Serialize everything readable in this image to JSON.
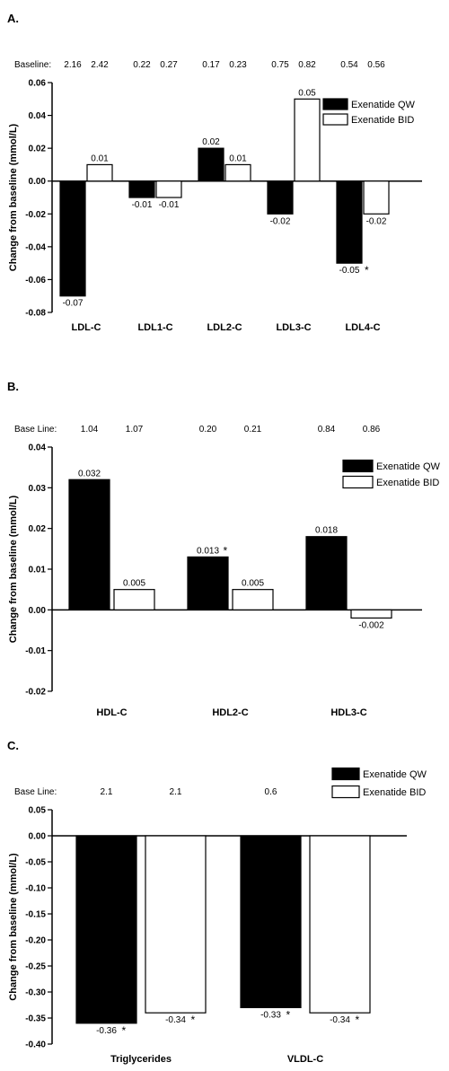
{
  "chart_data": [
    {
      "type": "bar",
      "panel": "A.",
      "baseline_label": "Baseline:",
      "categories": [
        "LDL-C",
        "LDL1-C",
        "LDL2-C",
        "LDL3-C",
        "LDL4-C"
      ],
      "series": [
        {
          "name": "Exenatide QW",
          "values": [
            -0.07,
            -0.01,
            0.02,
            -0.02,
            -0.05
          ],
          "labels": [
            "-0.07",
            "-0.01",
            "0.02",
            "-0.02",
            "-0.05"
          ],
          "significant": [
            false,
            false,
            false,
            false,
            true
          ],
          "baseline": [
            "2.16",
            "0.22",
            "0.17",
            "0.75",
            "0.54"
          ]
        },
        {
          "name": "Exenatide BID",
          "values": [
            0.01,
            -0.01,
            0.01,
            0.05,
            -0.02
          ],
          "labels": [
            "0.01",
            "-0.01",
            "0.01",
            "0.05",
            "-0.02"
          ],
          "significant": [
            false,
            false,
            false,
            false,
            false
          ],
          "baseline": [
            "2.42",
            "0.27",
            "0.23",
            "0.82",
            "0.56"
          ]
        }
      ],
      "ylabel": "Change from baseline (mmol/L)",
      "ylim": [
        -0.08,
        0.06
      ],
      "yticks": [
        "-0.08",
        "-0.06",
        "-0.04",
        "-0.02",
        "0.00",
        "0.02",
        "0.04",
        "0.06"
      ],
      "legend": "top-right",
      "grid": false
    },
    {
      "type": "bar",
      "panel": "B.",
      "baseline_label": "Base Line:",
      "categories": [
        "HDL-C",
        "HDL2-C",
        "HDL3-C"
      ],
      "series": [
        {
          "name": "Exenatide QW",
          "values": [
            0.032,
            0.013,
            0.018
          ],
          "labels": [
            "0.032",
            "0.013",
            "0.018"
          ],
          "significant": [
            false,
            true,
            false
          ],
          "baseline": [
            "1.04",
            "0.20",
            "0.84"
          ]
        },
        {
          "name": "Exenatide BID",
          "values": [
            0.005,
            0.005,
            -0.002
          ],
          "labels": [
            "0.005",
            "0.005",
            "-0.002"
          ],
          "significant": [
            false,
            false,
            false
          ],
          "baseline": [
            "1.07",
            "0.21",
            "0.86"
          ]
        }
      ],
      "ylabel": "Change from baseline (mmol/L)",
      "ylim": [
        -0.02,
        0.04
      ],
      "yticks": [
        "-0.02",
        "-0.01",
        "0.00",
        "0.01",
        "0.02",
        "0.03",
        "0.04"
      ],
      "legend": "top-right",
      "grid": false
    },
    {
      "type": "bar",
      "panel": "C.",
      "baseline_label": "Base Line:",
      "categories": [
        "Triglycerides",
        "VLDL-C"
      ],
      "series": [
        {
          "name": "Exenatide QW",
          "values": [
            -0.36,
            -0.33
          ],
          "labels": [
            "-0.36",
            "-0.33"
          ],
          "significant": [
            true,
            true
          ],
          "baseline": [
            "2.1",
            "0.6"
          ]
        },
        {
          "name": "Exenatide BID",
          "values": [
            -0.34,
            -0.34
          ],
          "labels": [
            "-0.34",
            "-0.34"
          ],
          "significant": [
            true,
            true
          ],
          "baseline": [
            "2.1",
            "0.6"
          ]
        }
      ],
      "ylabel": "Change from baseline (mmol/L)",
      "ylim": [
        -0.4,
        0.05
      ],
      "yticks": [
        "-0.40",
        "-0.35",
        "-0.30",
        "-0.25",
        "-0.20",
        "-0.15",
        "-0.10",
        "-0.05",
        "0.00",
        "0.05"
      ],
      "legend": "top-right",
      "grid": false
    }
  ]
}
